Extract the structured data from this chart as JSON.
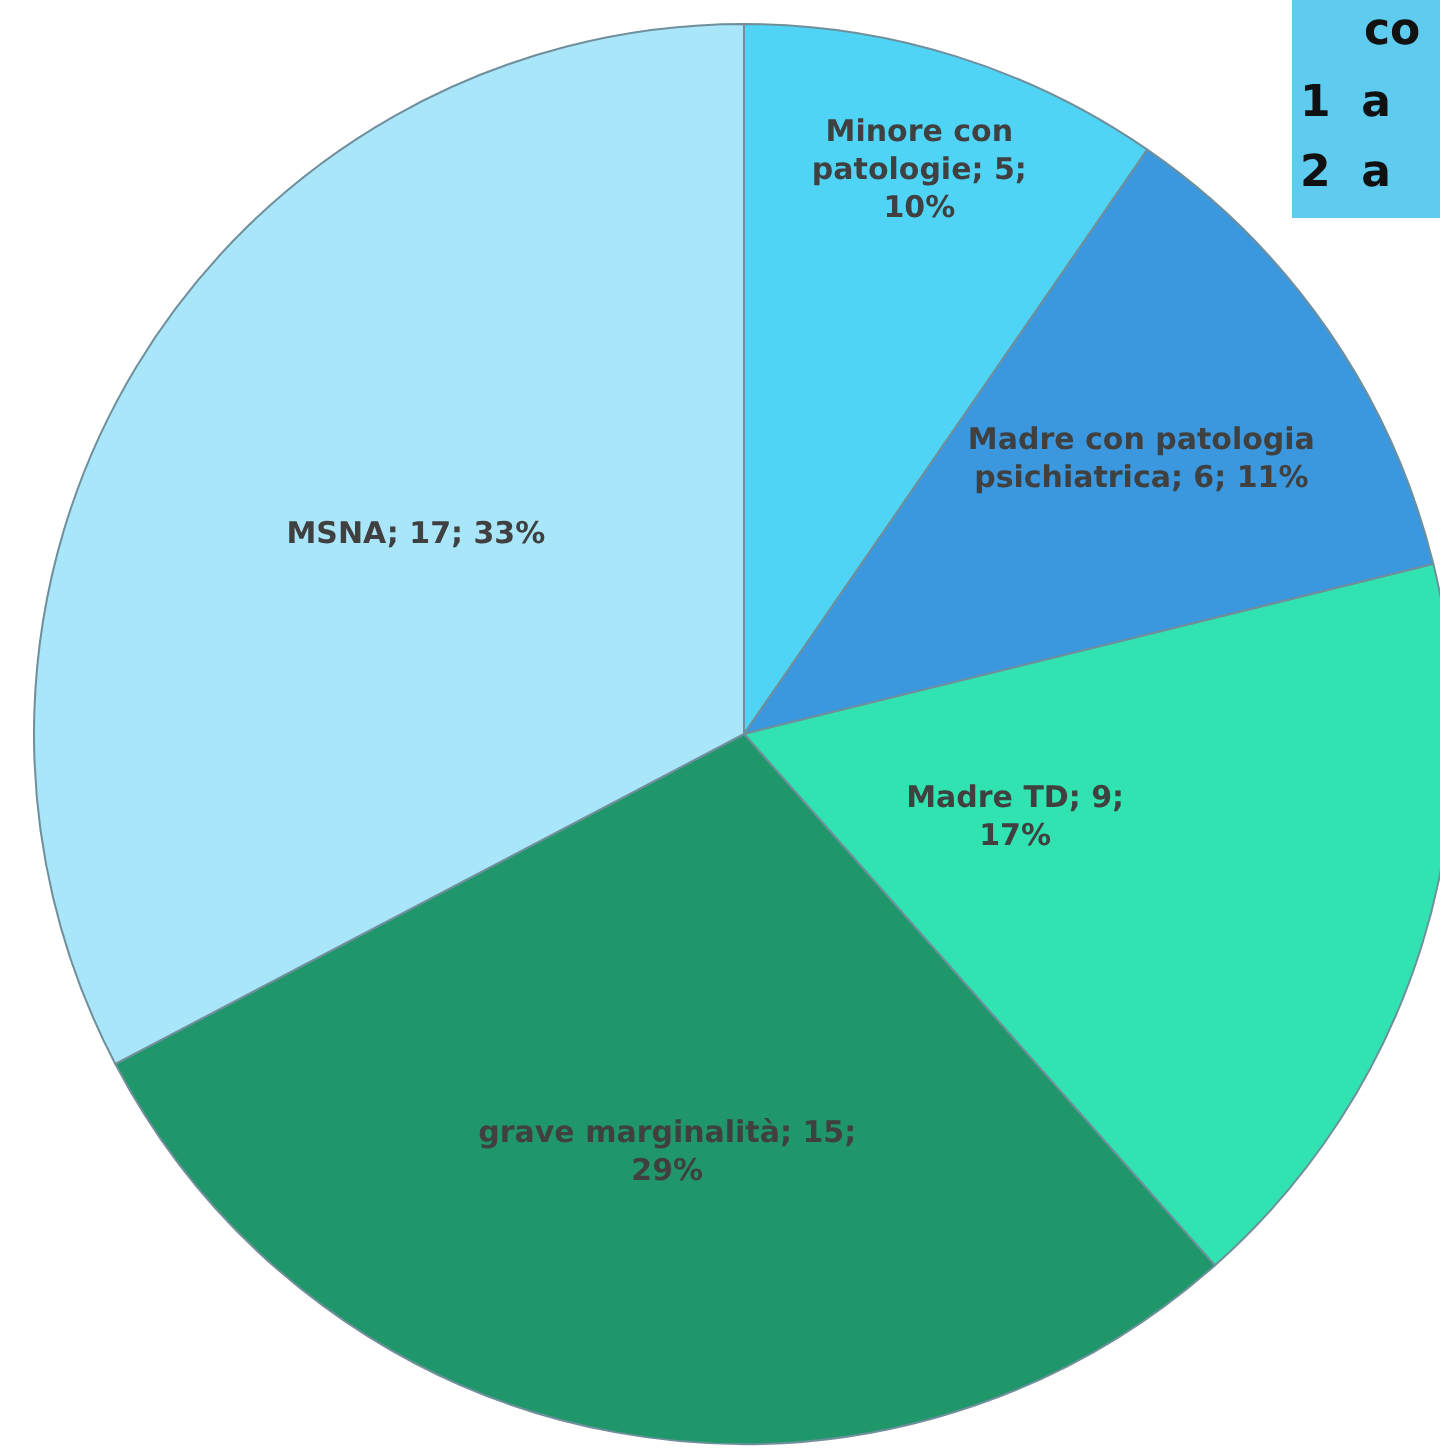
{
  "chart_data": {
    "type": "pie",
    "categories": [
      "Minore con patologie",
      "Madre con patologia psichiatrica",
      "Madre TD",
      "grave marginalità",
      "MSNA"
    ],
    "values": [
      5,
      6,
      9,
      15,
      17
    ],
    "colors": [
      "#4fd4f5",
      "#3b98de",
      "#30e3b0",
      "#20976a",
      "#a9e6fa"
    ],
    "value_labels": [
      "5; 10%",
      "6; 11%",
      "9; 17%",
      "15; 29%",
      "17; 33%"
    ],
    "annotations": [
      "co",
      "1 a",
      "2 a"
    ]
  }
}
